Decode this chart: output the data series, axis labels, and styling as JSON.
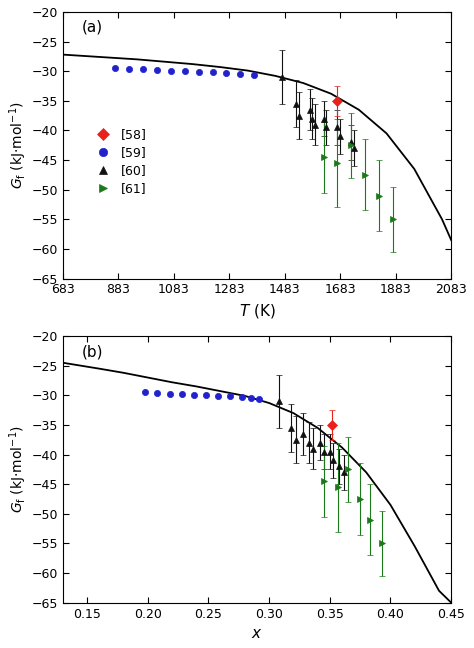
{
  "panel_a": {
    "curve_x": [
      683,
      750,
      850,
      950,
      1050,
      1150,
      1250,
      1350,
      1450,
      1550,
      1650,
      1750,
      1850,
      1950,
      2050,
      2083
    ],
    "curve_y": [
      -27.2,
      -27.4,
      -27.7,
      -28.0,
      -28.4,
      -28.8,
      -29.3,
      -29.9,
      -30.8,
      -32.0,
      -33.8,
      -36.5,
      -40.5,
      -46.5,
      -55.0,
      -58.5
    ],
    "ref58_x": [
      1673
    ],
    "ref58_y": [
      -35.0
    ],
    "ref58_yerr": [
      2.5
    ],
    "ref59_x": [
      873,
      923,
      973,
      1023,
      1073,
      1123,
      1173,
      1223,
      1273,
      1323,
      1373
    ],
    "ref59_y": [
      -29.5,
      -29.6,
      -29.7,
      -29.8,
      -29.9,
      -30.0,
      -30.1,
      -30.2,
      -30.35,
      -30.5,
      -30.7
    ],
    "ref60_x": [
      1473,
      1523,
      1533,
      1573,
      1583,
      1593,
      1623,
      1633,
      1673,
      1683,
      1723,
      1733
    ],
    "ref60_y": [
      -31.0,
      -35.5,
      -37.5,
      -36.5,
      -38.0,
      -39.0,
      -38.0,
      -39.5,
      -39.5,
      -41.0,
      -42.0,
      -43.0
    ],
    "ref60_yerr": [
      4.5,
      4.0,
      4.0,
      3.5,
      3.5,
      3.5,
      3.0,
      3.0,
      3.0,
      3.0,
      3.0,
      3.0
    ],
    "ref61_x": [
      1623,
      1673,
      1723,
      1773,
      1823,
      1873
    ],
    "ref61_y": [
      -44.5,
      -45.5,
      -42.5,
      -47.5,
      -51.0,
      -55.0
    ],
    "ref61_yerr": [
      6.0,
      7.5,
      5.5,
      6.0,
      6.0,
      5.5
    ],
    "xlabel": "$T$ (K)",
    "ylabel": "$G_\\mathrm{f}$ (kJ·mol$^{-1}$)",
    "xlim": [
      683,
      2083
    ],
    "ylim": [
      -65,
      -20
    ],
    "xticks": [
      683,
      883,
      1083,
      1283,
      1483,
      1683,
      1883,
      2083
    ],
    "yticks": [
      -20,
      -25,
      -30,
      -35,
      -40,
      -45,
      -50,
      -55,
      -60,
      -65
    ],
    "label": "(a)"
  },
  "panel_b": {
    "curve_x": [
      0.13,
      0.145,
      0.16,
      0.18,
      0.2,
      0.22,
      0.24,
      0.26,
      0.28,
      0.3,
      0.32,
      0.34,
      0.36,
      0.38,
      0.4,
      0.42,
      0.44,
      0.45
    ],
    "curve_y": [
      -24.5,
      -25.0,
      -25.5,
      -26.2,
      -27.0,
      -27.8,
      -28.5,
      -29.3,
      -30.1,
      -31.3,
      -33.0,
      -35.5,
      -38.8,
      -43.0,
      -48.5,
      -55.5,
      -63.0,
      -65.0
    ],
    "ref58_x": [
      0.352
    ],
    "ref58_y": [
      -35.0
    ],
    "ref58_yerr": [
      2.5
    ],
    "ref59_x": [
      0.198,
      0.208,
      0.218,
      0.228,
      0.238,
      0.248,
      0.258,
      0.268,
      0.278,
      0.285,
      0.292
    ],
    "ref59_y": [
      -29.5,
      -29.6,
      -29.7,
      -29.8,
      -29.9,
      -30.0,
      -30.1,
      -30.2,
      -30.35,
      -30.5,
      -30.7
    ],
    "ref60_x": [
      0.308,
      0.318,
      0.322,
      0.328,
      0.333,
      0.336,
      0.342,
      0.345,
      0.35,
      0.353,
      0.358,
      0.362
    ],
    "ref60_y": [
      -31.0,
      -35.5,
      -37.5,
      -36.5,
      -38.0,
      -39.0,
      -38.0,
      -39.5,
      -39.5,
      -41.0,
      -42.0,
      -43.0
    ],
    "ref60_yerr": [
      4.5,
      4.0,
      4.0,
      3.5,
      3.5,
      3.5,
      3.0,
      3.0,
      3.0,
      3.0,
      3.0,
      3.0
    ],
    "ref61_x": [
      0.345,
      0.357,
      0.365,
      0.375,
      0.383,
      0.393
    ],
    "ref61_y": [
      -44.5,
      -45.5,
      -42.5,
      -47.5,
      -51.0,
      -55.0
    ],
    "ref61_yerr": [
      6.0,
      7.5,
      5.5,
      6.0,
      6.0,
      5.5
    ],
    "xlabel": "$x$",
    "ylabel": "$G_\\mathrm{f}$ (kJ·mol$^{-1}$)",
    "xlim": [
      0.13,
      0.45
    ],
    "ylim": [
      -65,
      -20
    ],
    "xticks": [
      0.15,
      0.2,
      0.25,
      0.3,
      0.35,
      0.4,
      0.45
    ],
    "yticks": [
      -20,
      -25,
      -30,
      -35,
      -40,
      -45,
      -50,
      -55,
      -60,
      -65
    ],
    "label": "(b)"
  },
  "colors": {
    "ref58": "#e8221a",
    "ref59": "#2222cc",
    "ref60": "#111111",
    "ref61": "#1a7a1a",
    "curve": "#000000"
  },
  "legend": {
    "labels": [
      "[58]",
      "[59]",
      "[60]",
      "[61]"
    ],
    "markers": [
      "D",
      "o",
      "^",
      ">"
    ],
    "colors_keys": [
      "ref58",
      "ref59",
      "ref60",
      "ref61"
    ]
  }
}
